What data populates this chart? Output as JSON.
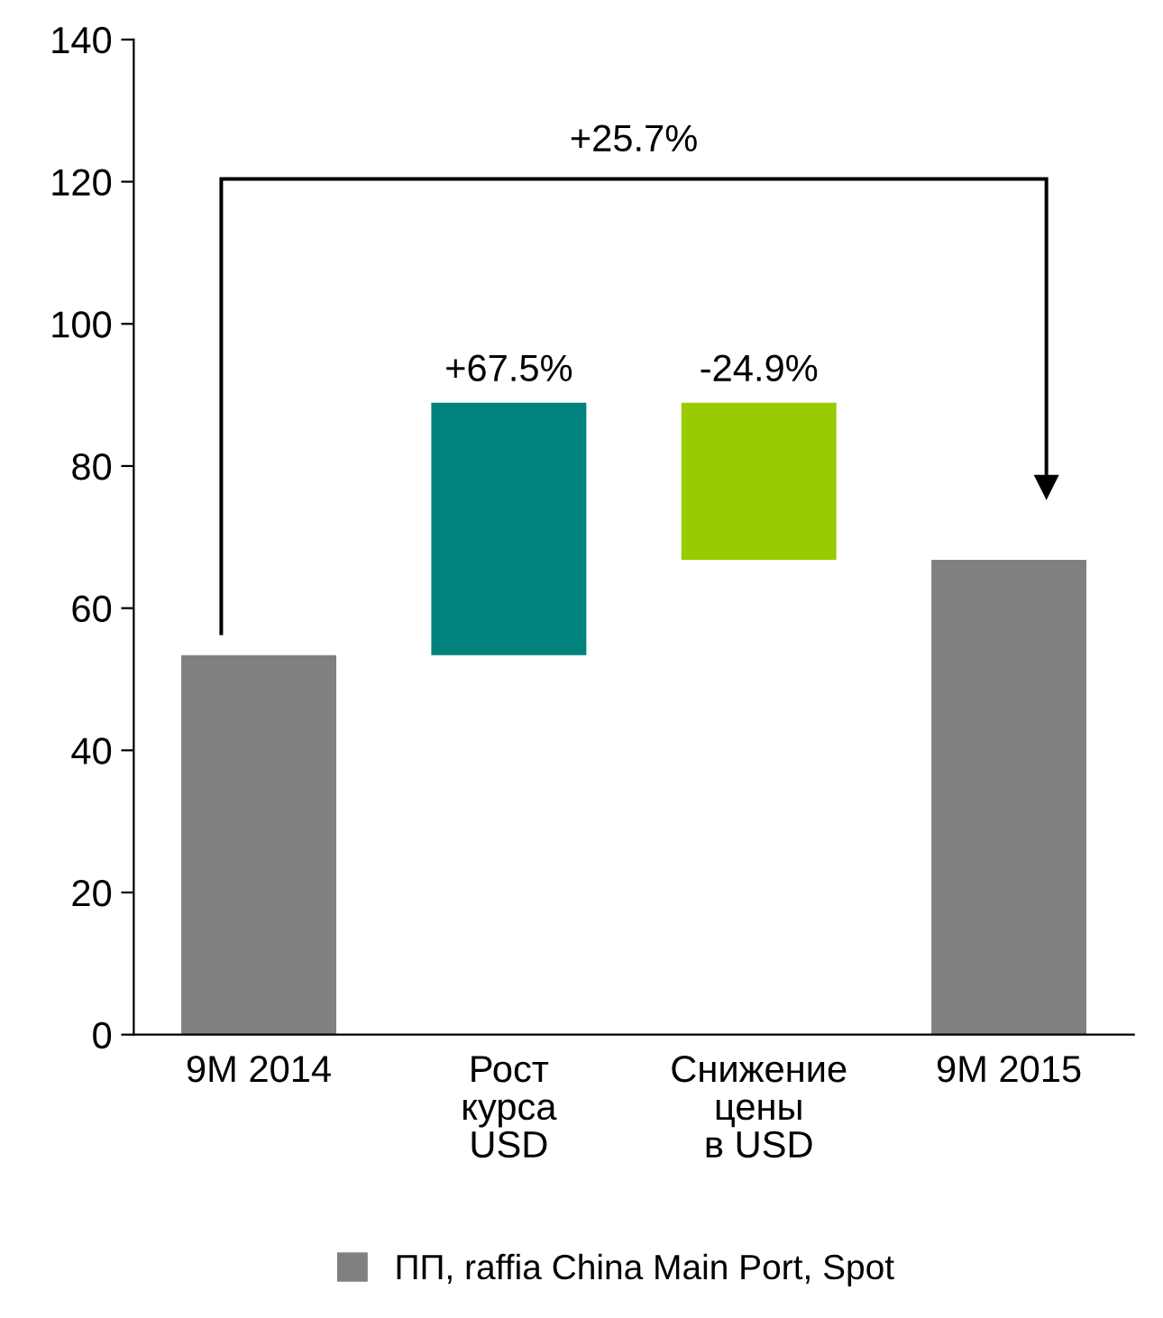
{
  "chart_data": {
    "type": "bar",
    "categories": [
      "9M 2014",
      "Рост\nкурса\nUSD",
      "Снижение\nцены\nв USD",
      "9M 2015"
    ],
    "series": [
      {
        "name": "ПП, raffia China Main Port, Spot",
        "color": "#808080",
        "values": [
          53.4,
          35.5,
          22.1,
          66.8
        ],
        "base": [
          0,
          53.4,
          66.8,
          0
        ],
        "colors": [
          "#808080",
          "#00827f",
          "#99cc00",
          "#808080"
        ]
      }
    ],
    "ylim": [
      0,
      140
    ],
    "yticks": [
      0,
      20,
      40,
      60,
      80,
      100,
      120,
      140
    ],
    "annotations": [
      "+25.7%",
      {
        "text": "+67.5%",
        "x": "Рост\nкурса\nUSD",
        "y": 88.9
      },
      {
        "text": "-24.9%",
        "x": "Снижение\nцены\nв USD",
        "y": 88.9
      }
    ],
    "grid": false,
    "legend": "bottom"
  }
}
